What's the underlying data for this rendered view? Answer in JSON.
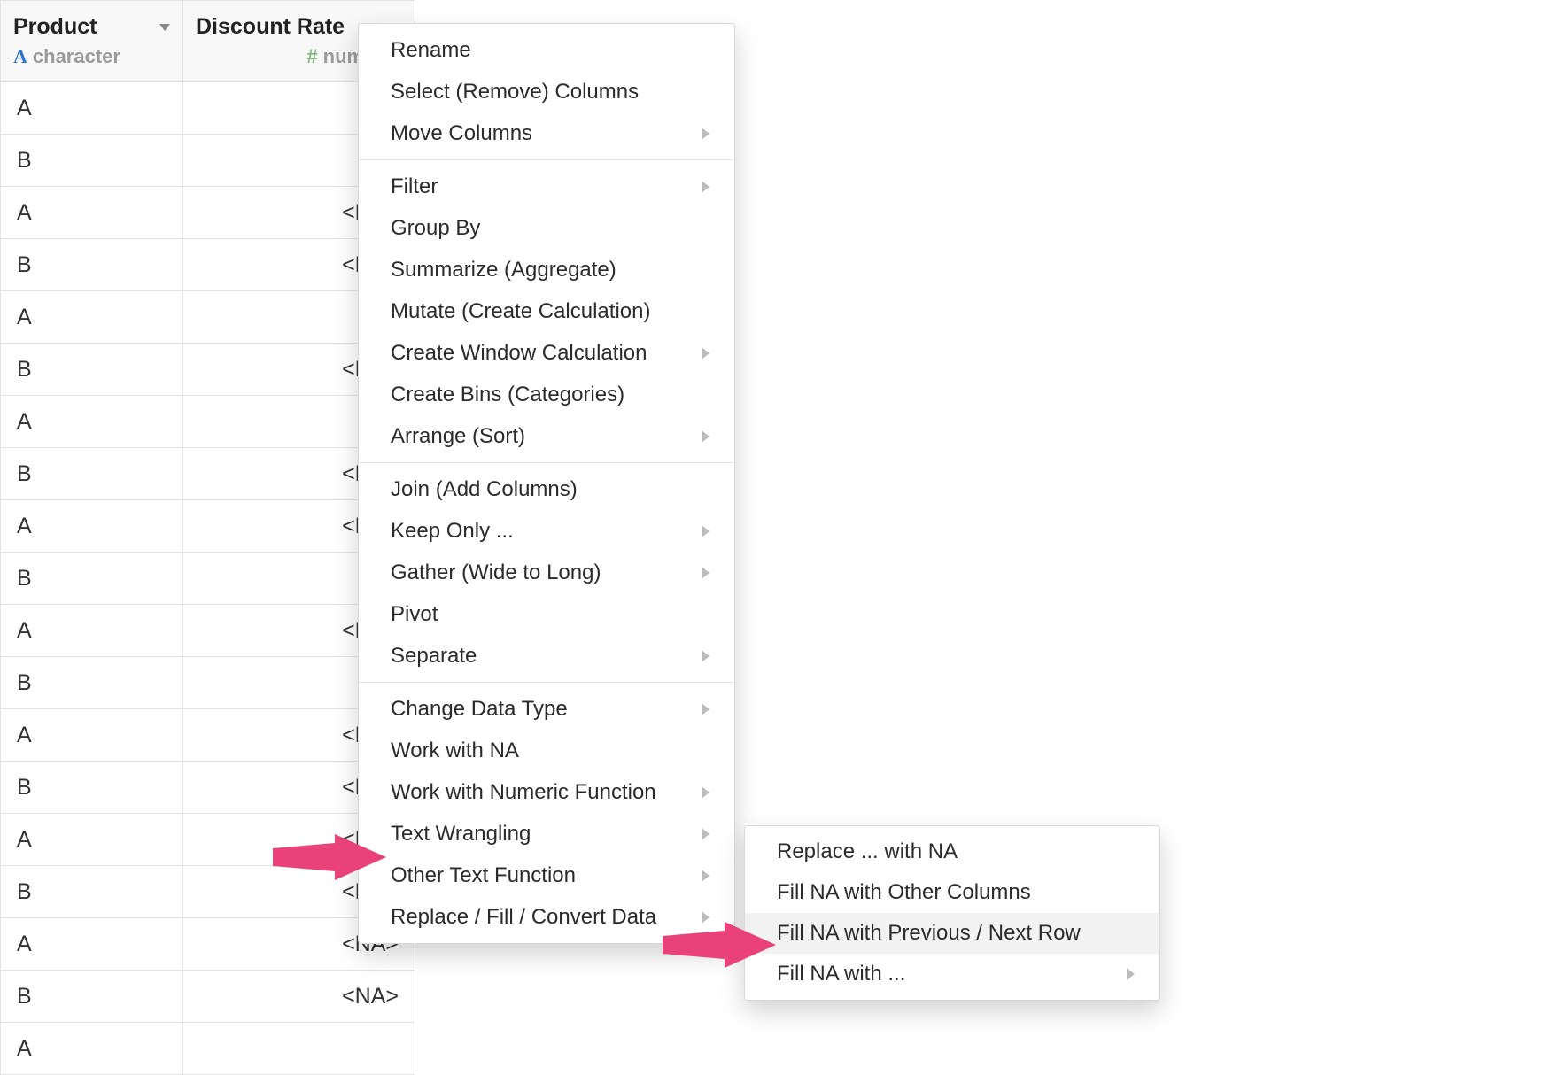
{
  "colors": {
    "arrow": "#e9427a",
    "border": "#e3e3e3",
    "header_bg": "#f8f8f8",
    "menu_border": "#d9d9d9",
    "na_text": "#b0b0b0",
    "char_icon": "#2f74d0",
    "num_icon": "#7fb77e"
  },
  "columns": [
    {
      "title": "Product",
      "type_label": "character",
      "type_icon": "A",
      "align": "left"
    },
    {
      "title": "Discount Rate",
      "type_label": "numeri",
      "type_icon": "#",
      "align": "right"
    }
  ],
  "rows": [
    {
      "product": "A",
      "rate": ""
    },
    {
      "product": "B",
      "rate": ""
    },
    {
      "product": "A",
      "rate": "<NA>"
    },
    {
      "product": "B",
      "rate": "<NA>"
    },
    {
      "product": "A",
      "rate": ""
    },
    {
      "product": "B",
      "rate": "<NA>"
    },
    {
      "product": "A",
      "rate": ""
    },
    {
      "product": "B",
      "rate": "<NA>"
    },
    {
      "product": "A",
      "rate": "<NA>"
    },
    {
      "product": "B",
      "rate": ""
    },
    {
      "product": "A",
      "rate": "<NA>"
    },
    {
      "product": "B",
      "rate": ""
    },
    {
      "product": "A",
      "rate": "<NA>"
    },
    {
      "product": "B",
      "rate": "<NA>"
    },
    {
      "product": "A",
      "rate": "<NA>"
    },
    {
      "product": "B",
      "rate": "<NA>"
    },
    {
      "product": "A",
      "rate": "<NA>"
    },
    {
      "product": "B",
      "rate": "<NA>"
    },
    {
      "product": "A",
      "rate": ""
    }
  ],
  "menu": {
    "sections": [
      [
        {
          "label": "Rename",
          "submenu": false
        },
        {
          "label": "Select (Remove) Columns",
          "submenu": false
        },
        {
          "label": "Move Columns",
          "submenu": true
        }
      ],
      [
        {
          "label": "Filter",
          "submenu": true
        },
        {
          "label": "Group By",
          "submenu": false
        },
        {
          "label": "Summarize (Aggregate)",
          "submenu": false
        },
        {
          "label": "Mutate (Create Calculation)",
          "submenu": false
        },
        {
          "label": "Create Window Calculation",
          "submenu": true
        },
        {
          "label": "Create Bins (Categories)",
          "submenu": false
        },
        {
          "label": "Arrange (Sort)",
          "submenu": true
        }
      ],
      [
        {
          "label": "Join (Add Columns)",
          "submenu": false
        },
        {
          "label": "Keep Only ...",
          "submenu": true
        },
        {
          "label": "Gather (Wide to Long)",
          "submenu": true
        },
        {
          "label": "Pivot",
          "submenu": false
        },
        {
          "label": "Separate",
          "submenu": true
        }
      ],
      [
        {
          "label": "Change Data Type",
          "submenu": true
        },
        {
          "label": "Work with NA",
          "submenu": false,
          "key": "work-with-na"
        },
        {
          "label": "Work with Numeric Function",
          "submenu": true
        },
        {
          "label": "Text Wrangling",
          "submenu": true
        },
        {
          "label": "Other Text Function",
          "submenu": true
        },
        {
          "label": "Replace / Fill / Convert Data",
          "submenu": true
        }
      ]
    ]
  },
  "submenu": {
    "items": [
      {
        "label": "Replace ... with NA",
        "submenu": false
      },
      {
        "label": "Fill NA with Other Columns",
        "submenu": false
      },
      {
        "label": "Fill NA with Previous / Next Row",
        "submenu": false,
        "hover": true,
        "key": "fill-na-prev-next"
      },
      {
        "label": "Fill NA with ...",
        "submenu": true
      }
    ]
  }
}
